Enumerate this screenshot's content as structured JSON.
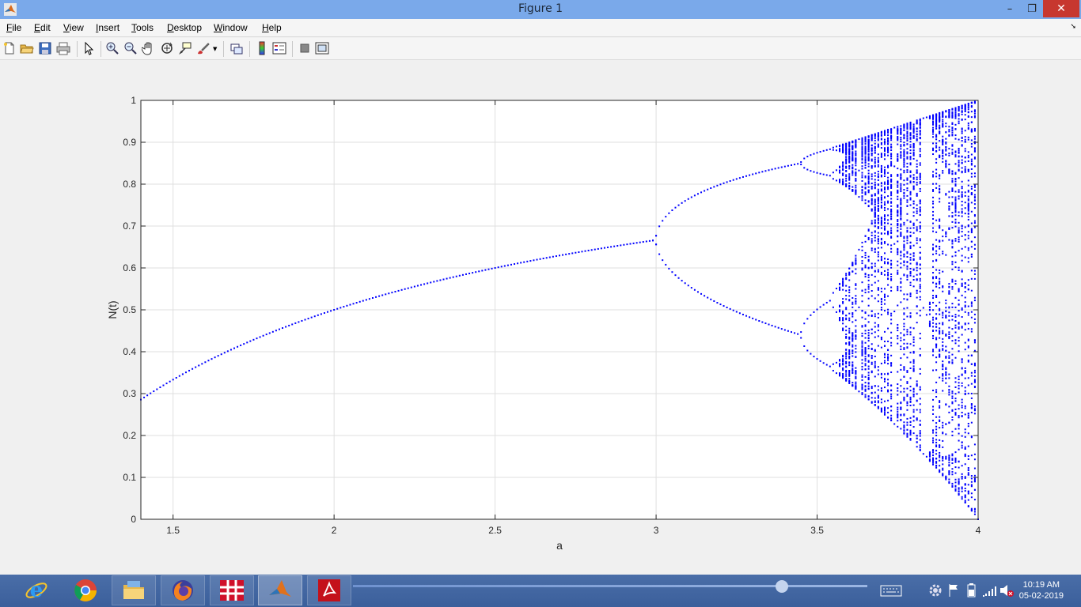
{
  "window": {
    "title": "Figure 1"
  },
  "window_controls": {
    "minimize": "–",
    "restore": "❐",
    "close": "✕"
  },
  "menu": [
    {
      "pre": "",
      "ul": "F",
      "post": "ile"
    },
    {
      "pre": "",
      "ul": "E",
      "post": "dit"
    },
    {
      "pre": "",
      "ul": "V",
      "post": "iew"
    },
    {
      "pre": "",
      "ul": "I",
      "post": "nsert"
    },
    {
      "pre": "",
      "ul": "T",
      "post": "ools"
    },
    {
      "pre": "",
      "ul": "D",
      "post": "esktop"
    },
    {
      "pre": "",
      "ul": "W",
      "post": "indow"
    },
    {
      "pre": "",
      "ul": "H",
      "post": "elp"
    }
  ],
  "toolbar_icons": [
    "new-figure-icon",
    "open-file-icon",
    "save-icon",
    "print-icon",
    "pointer-icon",
    "zoom-in-icon",
    "zoom-out-icon",
    "pan-hand-icon",
    "rotate-3d-icon",
    "data-cursor-icon",
    "brush-icon",
    "link-plot-icon",
    "insert-colorbar-icon",
    "insert-legend-icon",
    "hide-plot-tools-icon",
    "show-plot-tools-icon"
  ],
  "chart_data": {
    "type": "scatter",
    "title": "",
    "xlabel": "a",
    "ylabel": "N(t)",
    "xlim": [
      1.4,
      4.0
    ],
    "ylim": [
      0,
      1
    ],
    "xticks": [
      1.5,
      2,
      2.5,
      3,
      3.5,
      4
    ],
    "xtick_labels": [
      "1.5",
      "2",
      "2.5",
      "3",
      "3.5",
      "4"
    ],
    "yticks": [
      0,
      0.1,
      0.2,
      0.3,
      0.4,
      0.5,
      0.6,
      0.7,
      0.8,
      0.9,
      1
    ],
    "ytick_labels": [
      "0",
      "0.1",
      "0.2",
      "0.3",
      "0.4",
      "0.5",
      "0.6",
      "0.7",
      "0.8",
      "0.9",
      "1"
    ],
    "grid": true,
    "series": [
      {
        "marker_color": "#0000ff",
        "map": "N(t+1) = a·N(t)·(1−N(t))",
        "a_start": 1.4,
        "a_end": 4.0,
        "a_step": 0.01,
        "iterations_shown": 100
      }
    ]
  },
  "taskbar": {
    "apps": [
      "internet-explorer-icon",
      "chrome-icon",
      "file-explorer-icon",
      "firefox-icon",
      "remote-app-icon",
      "matlab-icon",
      "acrobat-icon"
    ],
    "tray_icons": [
      "keyboard-icon",
      "settings-gear-icon",
      "flag-icon",
      "battery-icon",
      "network-icon",
      "volume-muted-icon"
    ],
    "time": "10:19 AM",
    "date": "05-02-2019"
  }
}
